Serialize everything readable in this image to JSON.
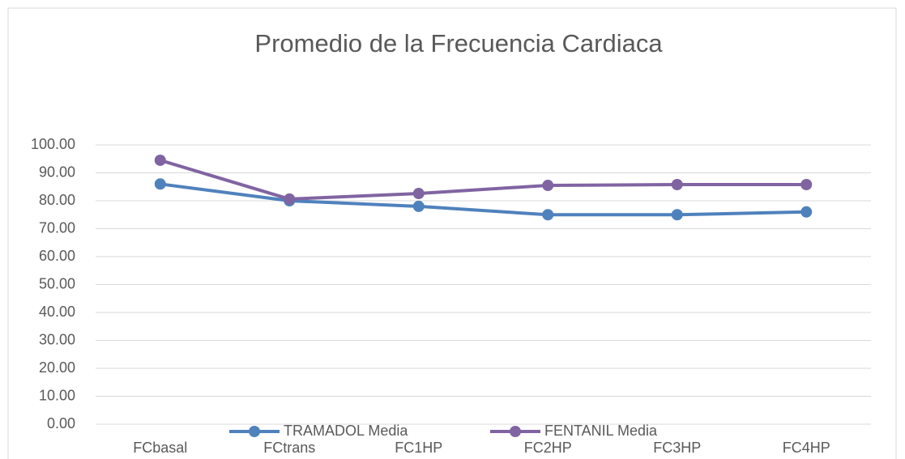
{
  "chart_data": {
    "type": "line",
    "title": "Promedio de la Frecuencia Cardiaca",
    "categories": [
      "FCbasal",
      "FCtrans",
      "FC1HP",
      "FC2HP",
      "FC3HP",
      "FC4HP"
    ],
    "series": [
      {
        "name": "TRAMADOL Media",
        "color": "#4f81bd",
        "values": [
          86,
          80,
          78,
          75,
          75,
          76
        ]
      },
      {
        "name": "FENTANIL Media",
        "color": "#8064a2",
        "values": [
          94.5,
          80.6,
          82.6,
          85.5,
          85.8,
          85.8
        ]
      }
    ],
    "ylim": [
      0,
      100
    ],
    "yticks": [
      {
        "value": 0,
        "label": "0.00"
      },
      {
        "value": 10,
        "label": "10.00"
      },
      {
        "value": 20,
        "label": "20.00"
      },
      {
        "value": 30,
        "label": "30.00"
      },
      {
        "value": 40,
        "label": "40.00"
      },
      {
        "value": 50,
        "label": "50.00"
      },
      {
        "value": 60,
        "label": "60.00"
      },
      {
        "value": 70,
        "label": "70.00"
      },
      {
        "value": 80,
        "label": "80.00"
      },
      {
        "value": 90,
        "label": "90.00"
      },
      {
        "value": 100,
        "label": "100.00"
      }
    ],
    "grid": true,
    "legend": "bottom"
  }
}
